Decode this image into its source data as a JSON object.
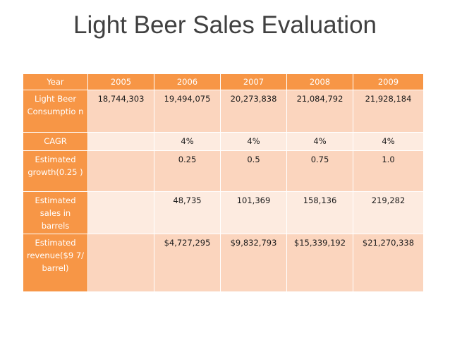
{
  "title": "Light Beer Sales Evaluation",
  "table": {
    "headers": [
      "Year",
      "2005",
      "2006",
      "2007",
      "2008",
      "2009"
    ],
    "rows": [
      {
        "label": "Light Beer Consumptio n",
        "cells": [
          "18,744,303",
          "19,494,075",
          "20,273,838",
          "21,084,792",
          "21,928,184"
        ]
      },
      {
        "label": "CAGR",
        "cells": [
          "",
          "4%",
          "4%",
          "4%",
          "4%"
        ]
      },
      {
        "label": "Estimated growth(0.25 )",
        "cells": [
          "",
          "0.25",
          "0.5",
          "0.75",
          "1.0"
        ]
      },
      {
        "label": "Estimated sales in barrels",
        "cells": [
          "",
          "48,735",
          "101,369",
          "158,136",
          "219,282"
        ]
      },
      {
        "label": "Estimated revenue($9 7/ barrel)",
        "cells": [
          "",
          "$4,727,295",
          "$9,832,793",
          "$15,339,192",
          "$21,270,338"
        ]
      }
    ]
  },
  "colors": {
    "header": "#f79646",
    "row_dark": "#fbd5be",
    "row_light": "#fdebe0",
    "title": "#404040"
  }
}
